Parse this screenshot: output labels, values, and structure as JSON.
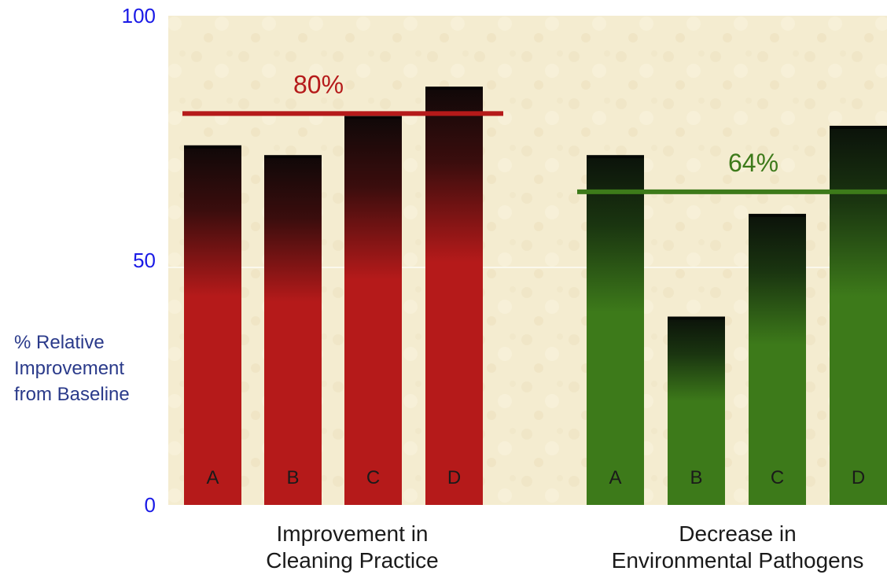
{
  "chart_data": {
    "type": "bar",
    "ylabel": [
      "% Relative",
      "Improvement",
      "from Baseline"
    ],
    "ylim": [
      0,
      100
    ],
    "yticks": [
      0,
      50,
      100
    ],
    "grid": false,
    "groups": [
      {
        "label": [
          "Improvement in",
          "Cleaning Practice"
        ],
        "color": "#b51a1a",
        "categories": [
          "A",
          "B",
          "C",
          "D"
        ],
        "values": [
          73.5,
          71.5,
          79.5,
          85.5
        ],
        "reference_value": 80,
        "reference_label": "80%"
      },
      {
        "label": [
          "Decrease in",
          "Environmental Pathogens"
        ],
        "color": "#3d7a1a",
        "categories": [
          "A",
          "B",
          "C",
          "D"
        ],
        "values": [
          71.5,
          38.5,
          59.5,
          77.5
        ],
        "reference_value": 64,
        "reference_label": "64%"
      }
    ]
  }
}
